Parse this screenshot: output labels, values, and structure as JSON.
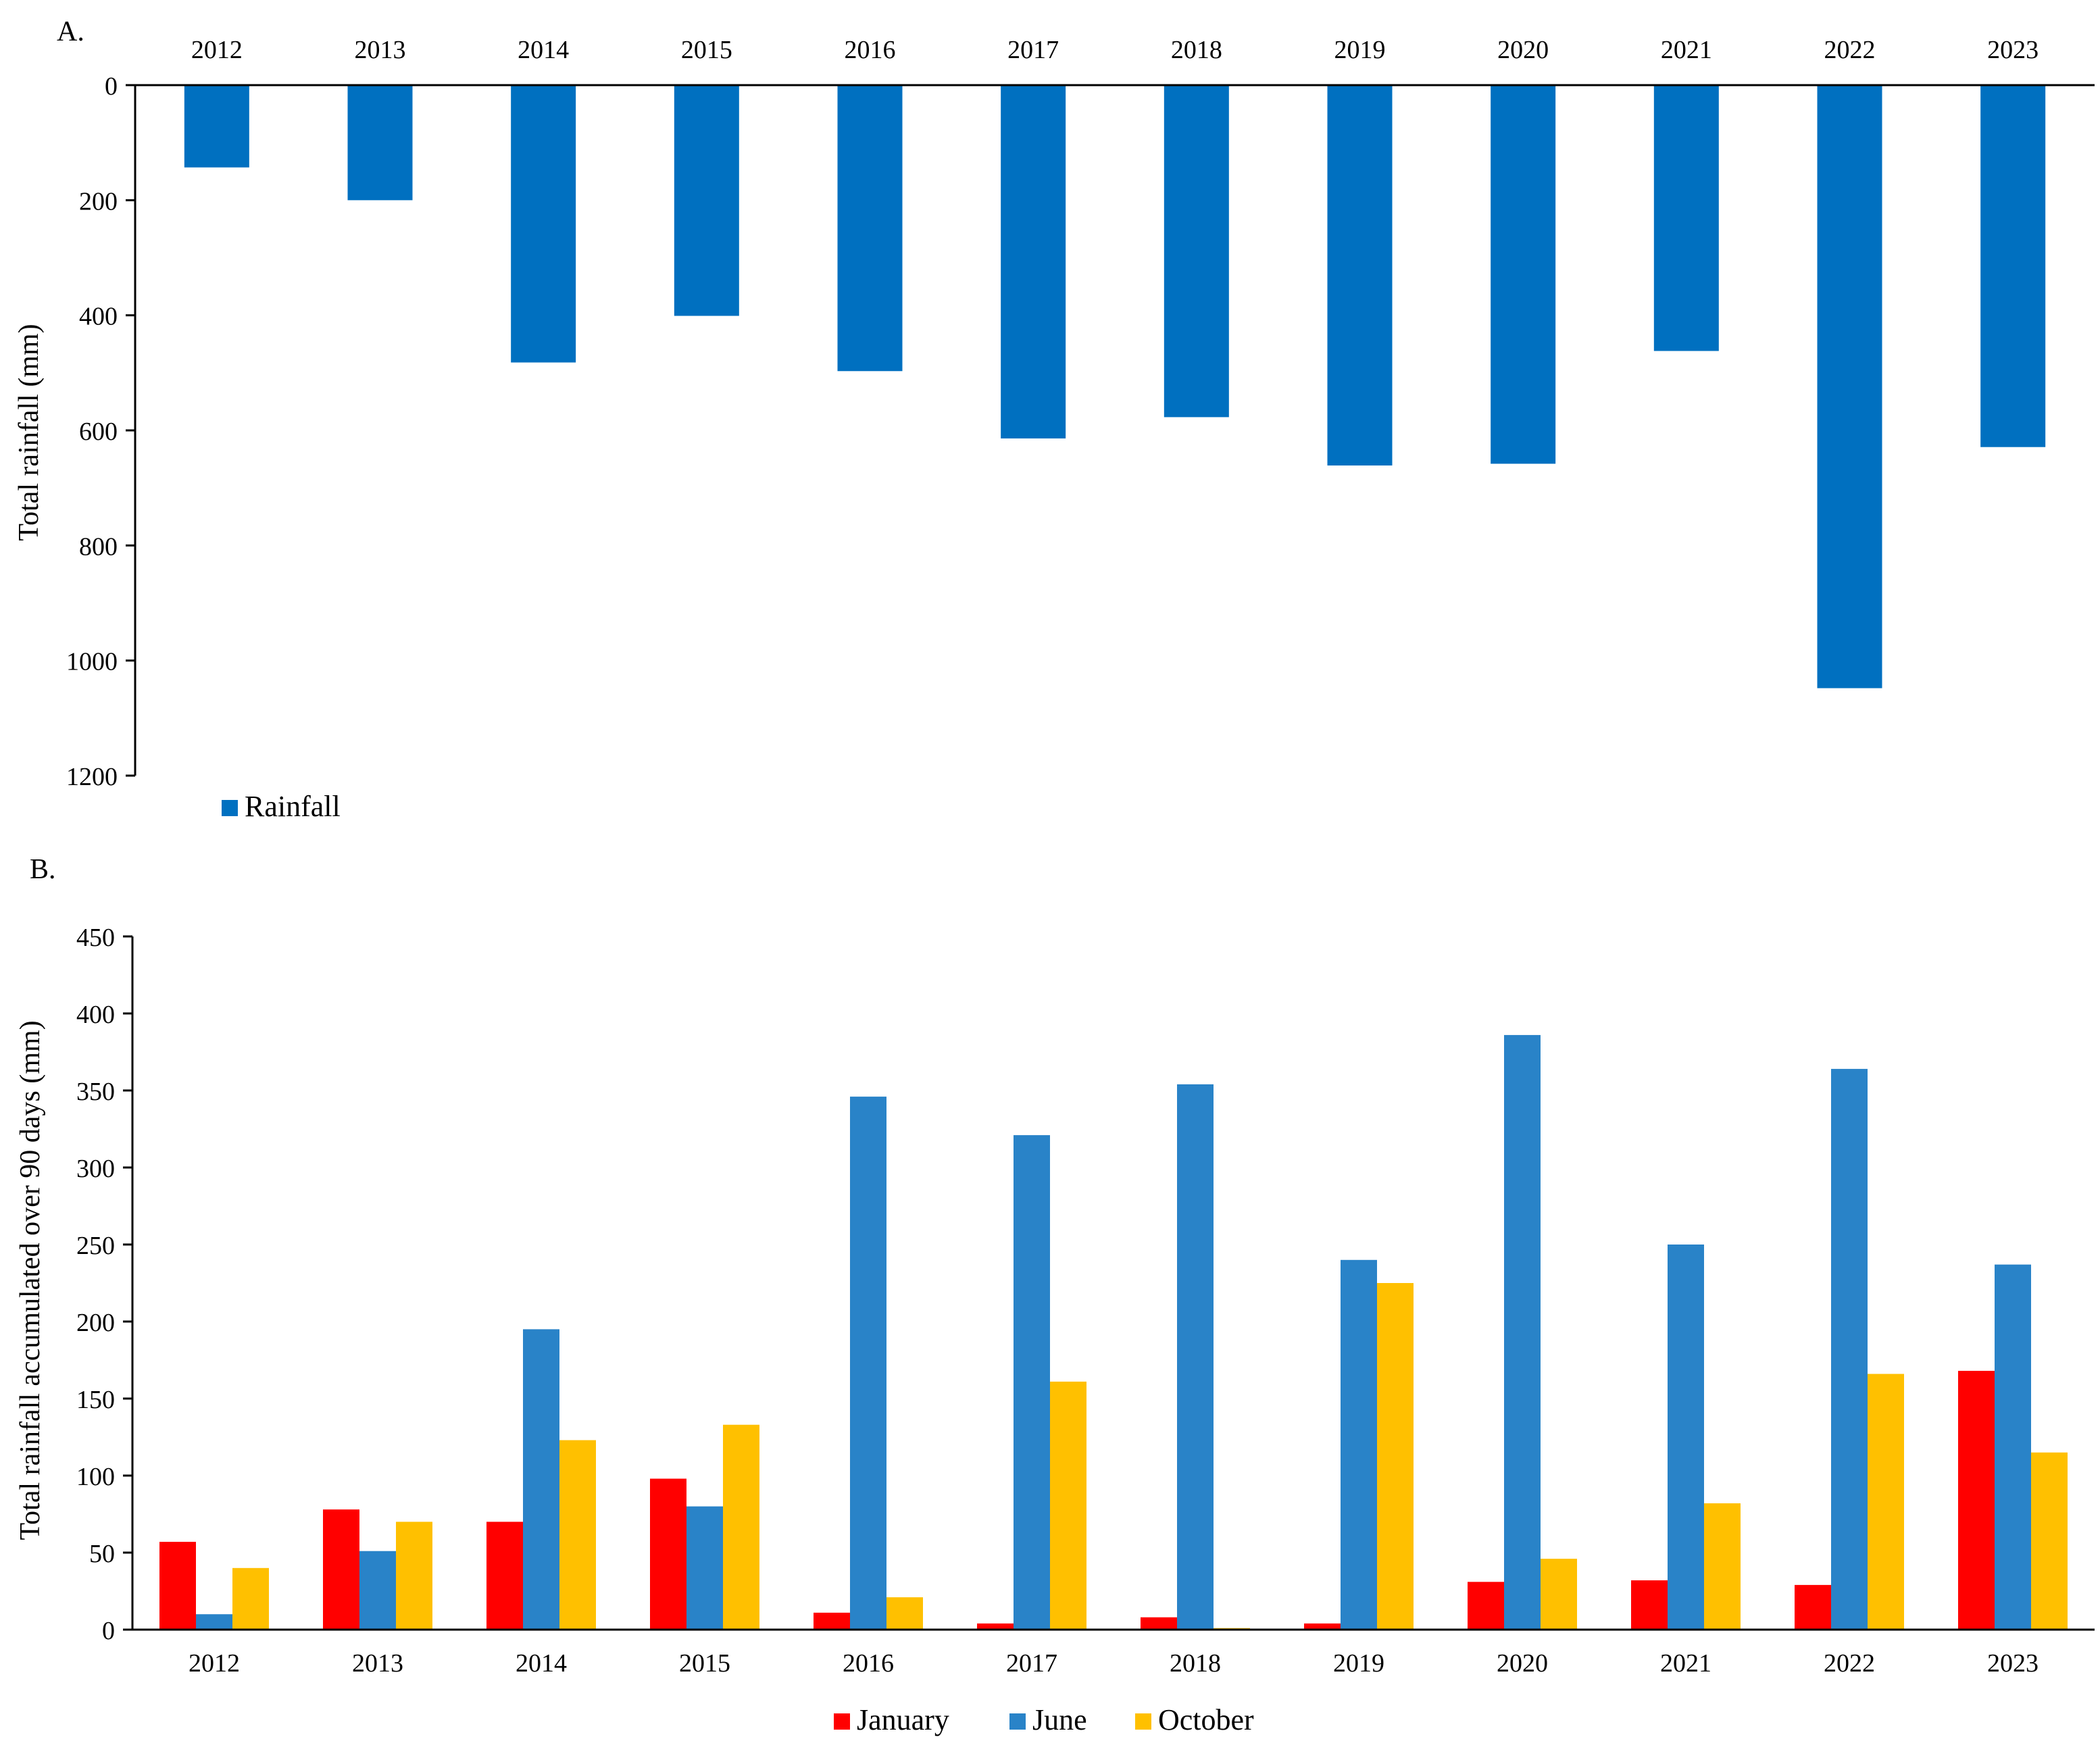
{
  "panel_a": {
    "label": "A.",
    "legend_label": "Rainfall"
  },
  "panel_b": {
    "label": "B."
  },
  "colors": {
    "rainfall": "#0070C0",
    "january": "#FF0000",
    "june": "#2983C8",
    "october": "#FFC000",
    "axis": "#000000"
  },
  "chart_data": [
    {
      "type": "bar",
      "panel": "A",
      "orientation": "vertical, y-axis inverted (bars hang down from 0)",
      "title": "",
      "xlabel": "",
      "ylabel": "Total rainfall (mm)",
      "categories": [
        "2012",
        "2013",
        "2014",
        "2015",
        "2016",
        "2017",
        "2018",
        "2019",
        "2020",
        "2021",
        "2022",
        "2023"
      ],
      "series": [
        {
          "name": "Rainfall",
          "color_key": "rainfall",
          "values": [
            143,
            200,
            482,
            401,
            497,
            614,
            577,
            661,
            658,
            462,
            1048,
            629
          ]
        }
      ],
      "ylim": [
        0,
        1200
      ],
      "yticks": [
        "0",
        "200",
        "400",
        "600",
        "800",
        "1000",
        "1200"
      ],
      "legend": "bottom-left",
      "grid": false
    },
    {
      "type": "bar",
      "panel": "B",
      "title": "",
      "xlabel": "",
      "ylabel": "Total rainfall accumulated over 90 days  (mm)",
      "categories": [
        "2012",
        "2013",
        "2014",
        "2015",
        "2016",
        "2017",
        "2018",
        "2019",
        "2020",
        "2021",
        "2022",
        "2023"
      ],
      "series": [
        {
          "name": "January",
          "color_key": "january",
          "values": [
            57,
            78,
            70,
            98,
            11,
            4,
            8,
            4,
            31,
            32,
            29,
            168
          ]
        },
        {
          "name": "June",
          "color_key": "june",
          "values": [
            10,
            51,
            195,
            80,
            346,
            321,
            354,
            240,
            386,
            250,
            364,
            237
          ]
        },
        {
          "name": "October",
          "color_key": "october",
          "values": [
            40,
            70,
            123,
            133,
            21,
            161,
            1,
            225,
            46,
            82,
            166,
            115
          ]
        }
      ],
      "ylim": [
        0,
        450
      ],
      "yticks": [
        "0",
        "50",
        "100",
        "150",
        "200",
        "250",
        "300",
        "350",
        "400",
        "450"
      ],
      "legend": "bottom-center",
      "grid": false
    }
  ]
}
